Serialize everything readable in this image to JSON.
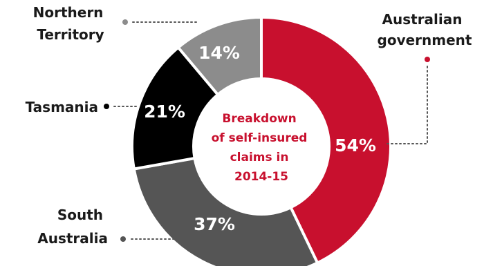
{
  "chart_data": {
    "type": "pie",
    "donut": true,
    "center_label": [
      "Breakdown",
      "of self-insured",
      "claims in",
      "2014-15"
    ],
    "categories": [
      "Australian government",
      "South Australia",
      "Tasmania",
      "Northern Territory"
    ],
    "values": [
      54,
      37,
      21,
      14
    ],
    "value_labels": [
      "54%",
      "37%",
      "21%",
      "14%"
    ],
    "legend": [
      [
        "Australian",
        "government"
      ],
      [
        "South",
        "Australia"
      ],
      [
        "Tasmania"
      ],
      [
        "Northern",
        "Territory"
      ]
    ],
    "colors": [
      "#c8102e",
      "#555555",
      "#000000",
      "#8c8c8c"
    ],
    "center_color": "#c8102e"
  }
}
